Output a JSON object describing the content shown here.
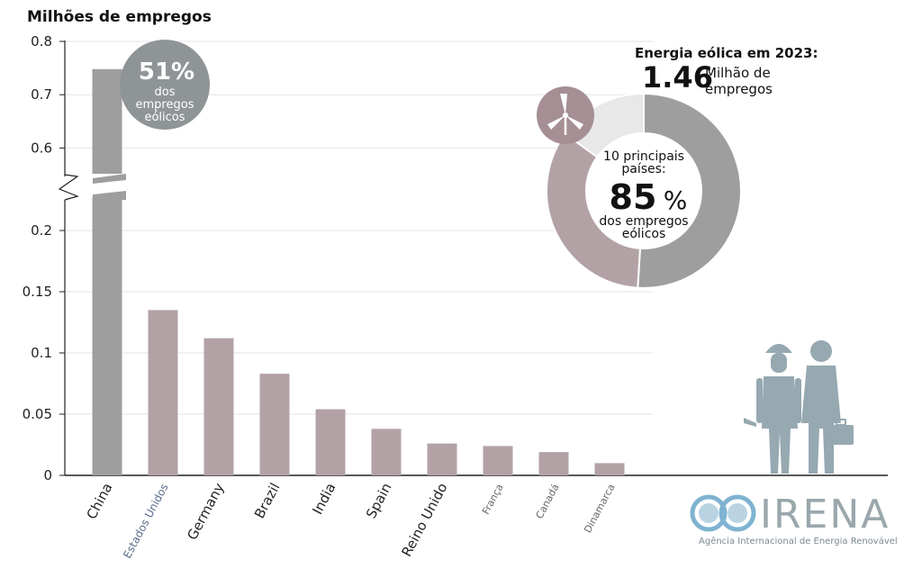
{
  "chart_data": {
    "type": "bar",
    "ylabel": "Milhões de empregos",
    "y_ticks_lower": [
      "0",
      "0.05",
      "0.1",
      "0.15",
      "0.2"
    ],
    "y_ticks_upper": [
      "0.6",
      "0.7",
      "0.8"
    ],
    "axis_break": true,
    "categories": [
      "China",
      "Estados Unidos",
      "Germany",
      "Brazil",
      "India",
      "Spain",
      "Reino Unido",
      "França",
      "Canadá",
      "Dinamarca"
    ],
    "values": [
      0.748,
      0.135,
      0.112,
      0.083,
      0.054,
      0.038,
      0.026,
      0.024,
      0.019,
      0.01
    ],
    "colors": {
      "china": "#9e9e9e",
      "others": "#b3a2a5",
      "grid": "#e3e3e3"
    },
    "china_bubble": {
      "big": "51%",
      "line1": "dos",
      "line2": "empregos",
      "line3": "eólicos",
      "color": "#8f9497"
    },
    "donut": {
      "title": "Energia eólica em 2023:",
      "total_number": "1.46",
      "total_unit_line1": "Milhão de",
      "total_unit_line2": "empregos",
      "center_line1": "10 principais",
      "center_line2": "países:",
      "center_big": "85",
      "center_pct": "%",
      "center_line3": "dos empregos",
      "center_line4": "eólicos",
      "segments": [
        {
          "value": 51,
          "color": "#9e9e9e"
        },
        {
          "value": 34,
          "color": "#b3a2a5"
        },
        {
          "value": 15,
          "color": "#e8e8e8"
        }
      ],
      "icon": "wind-turbine-icon"
    }
  },
  "branding": {
    "logo_text": "IRENA",
    "logo_sub": "Agência Internacional de Energia Renovável",
    "workers_icon": "workers-icon"
  }
}
